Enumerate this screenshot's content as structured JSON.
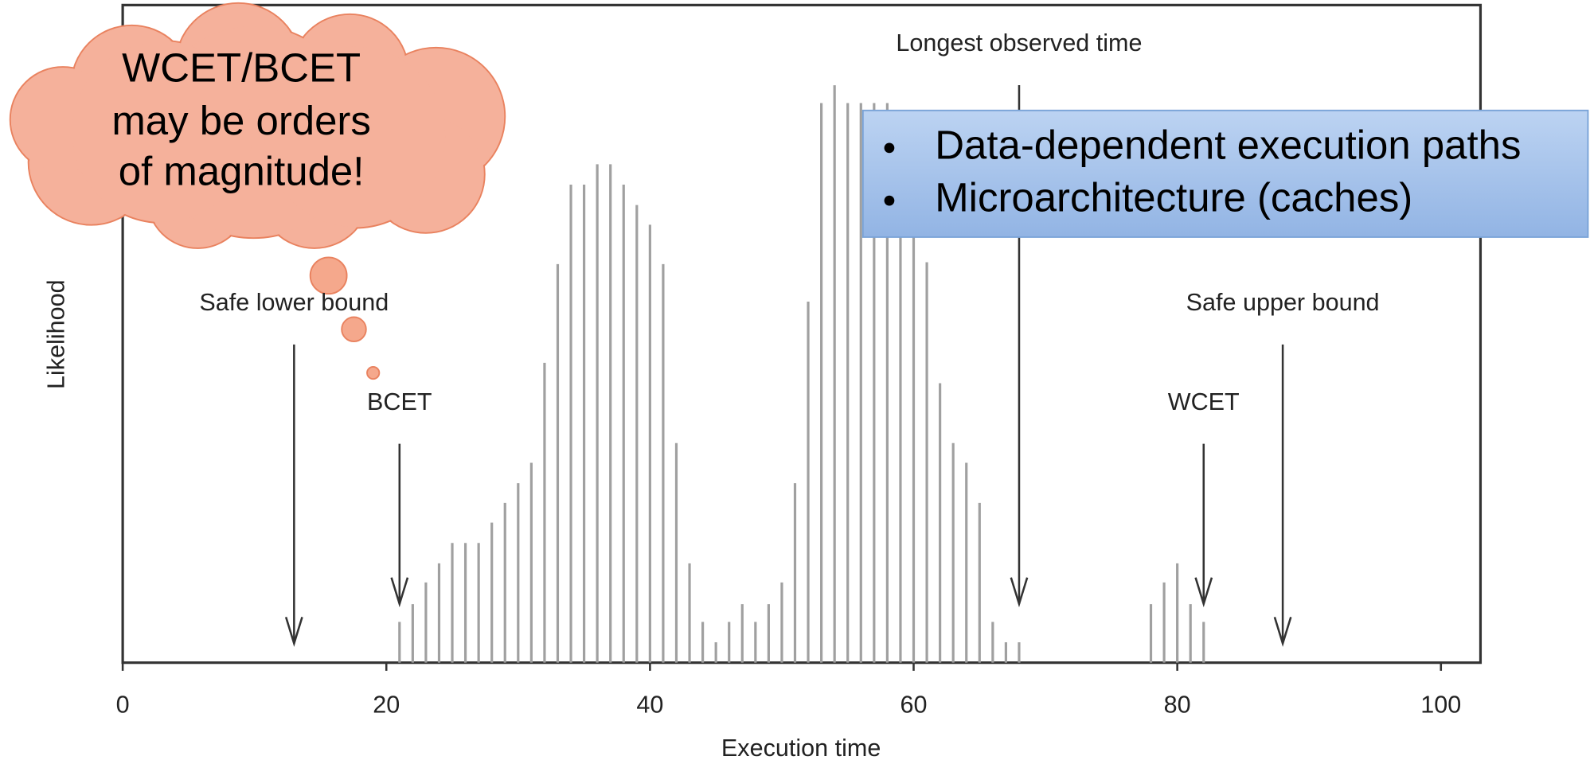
{
  "chart_data": {
    "type": "bar",
    "x": [
      21,
      22,
      23,
      24,
      25,
      26,
      27,
      28,
      29,
      30,
      31,
      32,
      33,
      34,
      35,
      36,
      37,
      38,
      39,
      40,
      41,
      42,
      43,
      44,
      45,
      46,
      47,
      48,
      49,
      50,
      51,
      52,
      53,
      54,
      55,
      56,
      57,
      58,
      59,
      60,
      61,
      62,
      63,
      64,
      65,
      66,
      67,
      68,
      78,
      79,
      80,
      81,
      82
    ],
    "values": [
      6.2,
      8.9,
      12.2,
      15.1,
      18.2,
      18.2,
      18.2,
      21.3,
      24.3,
      27.3,
      30.4,
      45.6,
      60.6,
      72.7,
      72.7,
      75.8,
      75.8,
      72.7,
      69.6,
      66.6,
      60.6,
      33.4,
      15.1,
      6.2,
      3.1,
      6.2,
      8.9,
      6.2,
      8.9,
      12.2,
      27.3,
      54.9,
      85.1,
      87.8,
      85.1,
      85.1,
      85.1,
      85.1,
      84,
      76.1,
      60.9,
      42.5,
      33.4,
      30.4,
      24.3,
      6.2,
      3.1,
      3.1,
      8.9,
      12.2,
      15.1,
      8.9,
      6.2
    ],
    "color": "#a0a0a0",
    "xlim": [
      0,
      103
    ],
    "ylim": [
      0,
      100
    ],
    "xticks": [
      0,
      20,
      40,
      60,
      80,
      100
    ],
    "xlabel": "Execution time",
    "ylabel": "Likelihood",
    "annotations": [
      {
        "text": "Safe lower bound",
        "x": 13
      },
      {
        "text": "BCET",
        "x": 21
      },
      {
        "text": "Longest observed time",
        "x": 68
      },
      {
        "text": "WCET",
        "x": 82
      },
      {
        "text": "Safe upper bound",
        "x": 88
      }
    ]
  },
  "callout": {
    "lines": [
      "WCET/BCET",
      "may be orders",
      "of magnitude!"
    ]
  },
  "note_box": {
    "items": [
      "Data-dependent execution paths",
      "Microarchitecture (caches)"
    ]
  }
}
